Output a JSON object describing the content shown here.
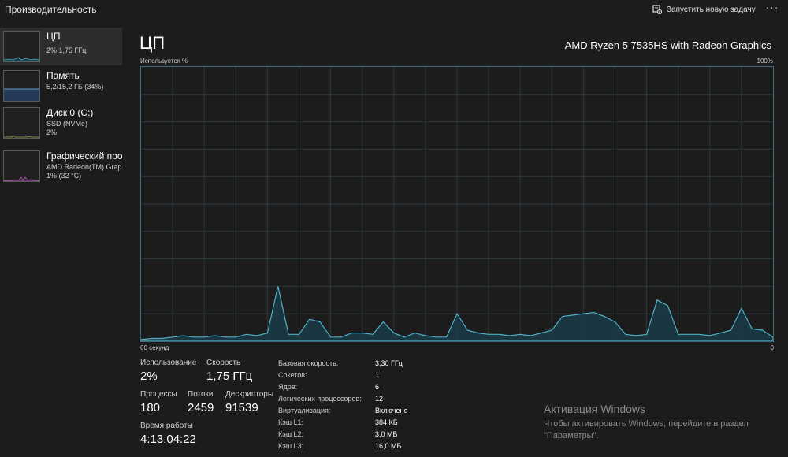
{
  "header": {
    "title": "Производительность",
    "run_task_label": "Запустить новую задачу",
    "more_label": "···"
  },
  "sidebar": {
    "items": [
      {
        "name": "ЦП",
        "line1": "2%  1,75 ГГц",
        "line2": "",
        "selected": true,
        "color": "#4fb0c6"
      },
      {
        "name": "Память",
        "line1": "5,2/15,2 ГБ (34%)",
        "line2": "",
        "selected": false,
        "color": "#6a9bd1"
      },
      {
        "name": "Диск 0 (C:)",
        "line1": "SSD (NVMe)",
        "line2": "2%",
        "selected": false,
        "color": "#9ab24a"
      },
      {
        "name": "Графический про",
        "line1": "AMD Radeon(TM) Grap",
        "line2": "1% (32 °C)",
        "selected": false,
        "color": "#b05ab0"
      }
    ]
  },
  "main": {
    "title": "ЦП",
    "cpu_model": "AMD Ryzen 5 7535HS with Radeon Graphics",
    "graph_label": "Используется %",
    "graph_max": "100%",
    "axis_left": "60 секунд",
    "axis_right": "0"
  },
  "chart_data": {
    "type": "area",
    "ylabel": "Используется %",
    "ylim": [
      0,
      100
    ],
    "xlim": [
      60,
      0
    ],
    "xlabel_left": "60 секунд",
    "xlabel_right": "0",
    "grid": true,
    "color": "#4fb0c6",
    "fill": "#1b3a46",
    "values": [
      0.6,
      1,
      1,
      1.5,
      2,
      1.5,
      1.5,
      2,
      1.5,
      1.5,
      2.5,
      2,
      3,
      20,
      2.5,
      2.5,
      8,
      7,
      1.5,
      1.5,
      3,
      3,
      2.5,
      7,
      3,
      1.5,
      3,
      2,
      1.5,
      1.5,
      10,
      4,
      3,
      2.5,
      2.5,
      2,
      2.5,
      2,
      3,
      4,
      9,
      9.5,
      10,
      10.5,
      9,
      7,
      2.5,
      2,
      2.5,
      15,
      13,
      2.5,
      2.5,
      2.5,
      2,
      3,
      4,
      12,
      4.5,
      4,
      1.5
    ]
  },
  "stats": {
    "usage_label": "Использование",
    "usage_value": "2%",
    "speed_label": "Скорость",
    "speed_value": "1,75 ГГц",
    "processes_label": "Процессы",
    "processes_value": "180",
    "threads_label": "Потоки",
    "threads_value": "2459",
    "handles_label": "Дескрипторы",
    "handles_value": "91539",
    "uptime_label": "Время работы",
    "uptime_value": "4:13:04:22"
  },
  "specs": [
    {
      "k": "Базовая скорость:",
      "v": "3,30 ГГц"
    },
    {
      "k": "Сокетов:",
      "v": "1"
    },
    {
      "k": "Ядра:",
      "v": "6"
    },
    {
      "k": "Логических процессоров:",
      "v": "12"
    },
    {
      "k": "Виртуализация:",
      "v": "Включено"
    },
    {
      "k": "Кэш L1:",
      "v": "384 КБ"
    },
    {
      "k": "Кэш L2:",
      "v": "3,0 МБ"
    },
    {
      "k": "Кэш L3:",
      "v": "16,0 МБ"
    }
  ],
  "activation": {
    "heading": "Активация Windows",
    "text": "Чтобы активировать Windows, перейдите в раздел \"Параметры\"."
  }
}
